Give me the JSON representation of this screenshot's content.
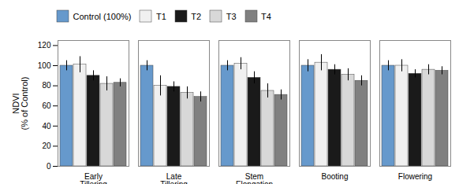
{
  "chart_data": {
    "type": "bar",
    "categories": [
      "Early\nTillering",
      "Late\nTillering",
      "Stem\nElongation",
      "Booting",
      "Flowering"
    ],
    "series": [
      {
        "name": "Control (100%)",
        "color": "#6699CC",
        "values": [
          100,
          100,
          100,
          100,
          100
        ],
        "errors": [
          5,
          5,
          5,
          6,
          5
        ]
      },
      {
        "name": "T1",
        "color": "#f0f0f0",
        "values": [
          101,
          80,
          102,
          103,
          100
        ],
        "errors": [
          8,
          10,
          6,
          8,
          6
        ]
      },
      {
        "name": "T2",
        "color": "#1a1a1a",
        "values": [
          90,
          79,
          88,
          96,
          92
        ],
        "errors": [
          5,
          5,
          6,
          5,
          4
        ]
      },
      {
        "name": "T3",
        "color": "#d8d8d8",
        "values": [
          82,
          73,
          75,
          91,
          96
        ],
        "errors": [
          7,
          6,
          7,
          6,
          5
        ]
      },
      {
        "name": "T4",
        "color": "#808080",
        "values": [
          83,
          69,
          71,
          85,
          95
        ],
        "errors": [
          4,
          5,
          5,
          5,
          4
        ]
      }
    ],
    "ylabel": "NDVI\n(% of Control)",
    "ylim": [
      0,
      125
    ],
    "yticks": [
      0,
      20,
      40,
      60,
      80,
      100,
      120
    ],
    "grid": false,
    "legend": "top"
  }
}
